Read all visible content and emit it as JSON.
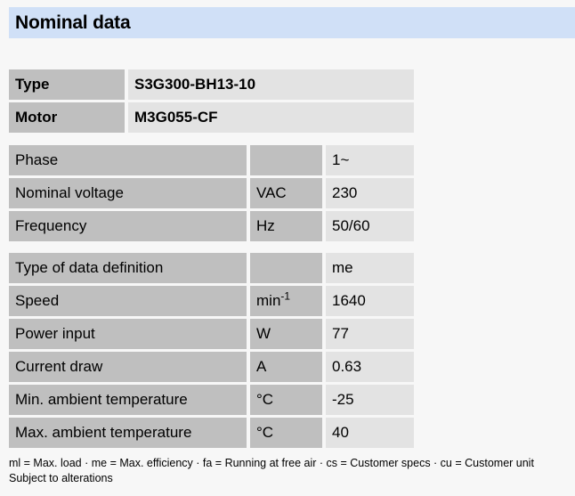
{
  "page": {
    "title": "Nominal data"
  },
  "colors": {
    "header_bg": "#d0e0f7",
    "cell_dark": "#bfbfbf",
    "cell_light": "#e3e3e3",
    "page_bg": "#f7f7f7"
  },
  "identity_table": {
    "rows": [
      {
        "label": "Type",
        "value": "S3G300-BH13-10"
      },
      {
        "label": "Motor",
        "value": "M3G055-CF"
      }
    ]
  },
  "electrical_table": {
    "rows": [
      {
        "label": "Phase",
        "unit": "",
        "unit_sup": "",
        "value": "1~"
      },
      {
        "label": "Nominal voltage",
        "unit": "VAC",
        "unit_sup": "",
        "value": "230"
      },
      {
        "label": "Frequency",
        "unit": "Hz",
        "unit_sup": "",
        "value": "50/60"
      }
    ]
  },
  "performance_table": {
    "rows": [
      {
        "label": "Type of data definition",
        "unit": "",
        "unit_sup": "",
        "value": "me"
      },
      {
        "label": "Speed",
        "unit": "min",
        "unit_sup": "-1",
        "value": "1640"
      },
      {
        "label": "Power input",
        "unit": "W",
        "unit_sup": "",
        "value": "77"
      },
      {
        "label": "Current draw",
        "unit": "A",
        "unit_sup": "",
        "value": "0.63"
      },
      {
        "label": "Min. ambient temperature",
        "unit": "°C",
        "unit_sup": "",
        "value": "-25"
      },
      {
        "label": "Max. ambient temperature",
        "unit": "°C",
        "unit_sup": "",
        "value": "40"
      }
    ]
  },
  "footer": {
    "legend": "ml = Max. load · me = Max. efficiency · fa = Running at free air · cs = Customer specs · cu = Customer unit",
    "note": "Subject to alterations"
  }
}
